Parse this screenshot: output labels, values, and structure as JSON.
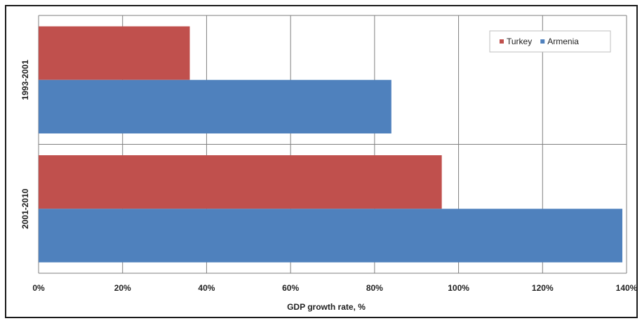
{
  "chart_data": {
    "type": "bar",
    "orientation": "horizontal",
    "categories": [
      "1993-2001",
      "2001-2010"
    ],
    "series": [
      {
        "name": "Turkey",
        "values": [
          36,
          96
        ],
        "color": "#c0504d"
      },
      {
        "name": "Armenia",
        "values": [
          84,
          139
        ],
        "color": "#4f81bd"
      }
    ],
    "xlabel": "GDP growth rate, %",
    "ylabel": "",
    "xlim": [
      0,
      140
    ],
    "xticks": [
      0,
      20,
      40,
      60,
      80,
      100,
      120,
      140
    ],
    "tick_suffix": "%",
    "grid": true,
    "legend_position": "top-right"
  }
}
